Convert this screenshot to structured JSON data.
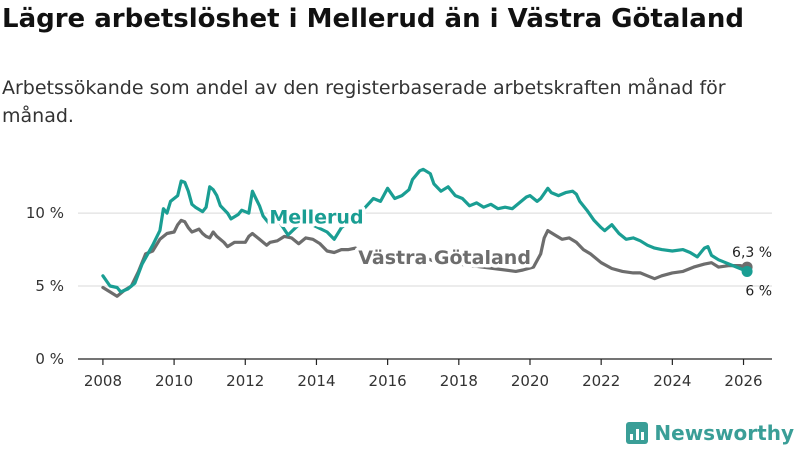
{
  "header": {
    "title": "Lägre arbetslöshet i Mellerud än i Västra Götaland",
    "subtitle": "Arbetssökande som andel av den registerbaserade arbetskraften månad för månad."
  },
  "brand": {
    "name": "Newsworthy",
    "icon": "bar-chart-logo-icon"
  },
  "colors": {
    "mellerud": "#1a9e93",
    "vastra": "#6d6d6d",
    "grid": "#d9d9d9",
    "axis": "#222222"
  },
  "chart_data": {
    "type": "line",
    "title": "Lägre arbetslöshet i Mellerud än i Västra Götaland",
    "xlabel": "",
    "ylabel": "",
    "xlim": [
      2007.3,
      2026.8
    ],
    "ylim": [
      0,
      13.5
    ],
    "x_ticks": [
      {
        "value": 2008,
        "label": "2008"
      },
      {
        "value": 2010,
        "label": "2010"
      },
      {
        "value": 2012,
        "label": "2012"
      },
      {
        "value": 2014,
        "label": "2014"
      },
      {
        "value": 2016,
        "label": "2016"
      },
      {
        "value": 2018,
        "label": "2018"
      },
      {
        "value": 2020,
        "label": "2020"
      },
      {
        "value": 2022,
        "label": "2022"
      },
      {
        "value": 2024,
        "label": "2024"
      },
      {
        "value": 2026,
        "label": "2026"
      }
    ],
    "y_ticks": [
      {
        "value": 0,
        "label": "0 %"
      },
      {
        "value": 5,
        "label": "5 %"
      },
      {
        "value": 10,
        "label": "10 %"
      }
    ],
    "grid": true,
    "series": [
      {
        "name": "Mellerud",
        "label_text": "Mellerud",
        "end_label": "6 %",
        "end_value": 6.0,
        "points": [
          [
            2008.0,
            5.7
          ],
          [
            2008.2,
            5.0
          ],
          [
            2008.4,
            4.9
          ],
          [
            2008.5,
            4.6
          ],
          [
            2008.7,
            4.8
          ],
          [
            2008.9,
            5.2
          ],
          [
            2009.1,
            6.5
          ],
          [
            2009.4,
            7.8
          ],
          [
            2009.6,
            8.8
          ],
          [
            2009.7,
            10.3
          ],
          [
            2009.8,
            10.0
          ],
          [
            2009.9,
            10.8
          ],
          [
            2010.1,
            11.2
          ],
          [
            2010.2,
            12.2
          ],
          [
            2010.3,
            12.1
          ],
          [
            2010.4,
            11.5
          ],
          [
            2010.5,
            10.6
          ],
          [
            2010.6,
            10.4
          ],
          [
            2010.8,
            10.1
          ],
          [
            2010.9,
            10.4
          ],
          [
            2011.0,
            11.8
          ],
          [
            2011.1,
            11.6
          ],
          [
            2011.2,
            11.2
          ],
          [
            2011.3,
            10.5
          ],
          [
            2011.5,
            10.0
          ],
          [
            2011.6,
            9.6
          ],
          [
            2011.8,
            9.9
          ],
          [
            2011.9,
            10.2
          ],
          [
            2012.1,
            10.0
          ],
          [
            2012.2,
            11.5
          ],
          [
            2012.3,
            11.0
          ],
          [
            2012.4,
            10.5
          ],
          [
            2012.5,
            9.8
          ],
          [
            2012.6,
            9.5
          ],
          [
            2012.7,
            9.2
          ],
          [
            2012.8,
            10.0
          ],
          [
            2013.2,
            8.5
          ],
          [
            2013.5,
            9.2
          ],
          [
            2013.8,
            9.3
          ],
          [
            2014.3,
            8.7
          ],
          [
            2014.5,
            8.2
          ],
          [
            2014.7,
            9.0
          ],
          [
            2014.9,
            9.4
          ],
          [
            2015.3,
            10.2
          ],
          [
            2015.6,
            11.0
          ],
          [
            2015.8,
            10.8
          ],
          [
            2016.0,
            11.7
          ],
          [
            2016.2,
            11.0
          ],
          [
            2016.4,
            11.2
          ],
          [
            2016.6,
            11.6
          ],
          [
            2016.7,
            12.3
          ],
          [
            2016.9,
            12.9
          ],
          [
            2017.0,
            13.0
          ],
          [
            2017.2,
            12.7
          ],
          [
            2017.3,
            12.0
          ],
          [
            2017.5,
            11.5
          ],
          [
            2017.7,
            11.8
          ],
          [
            2017.9,
            11.2
          ],
          [
            2018.1,
            11.0
          ],
          [
            2018.3,
            10.5
          ],
          [
            2018.5,
            10.7
          ],
          [
            2018.7,
            10.4
          ],
          [
            2018.9,
            10.6
          ],
          [
            2019.1,
            10.3
          ],
          [
            2019.3,
            10.4
          ],
          [
            2019.5,
            10.3
          ],
          [
            2019.7,
            10.7
          ],
          [
            2019.9,
            11.1
          ],
          [
            2020.0,
            11.2
          ],
          [
            2020.2,
            10.8
          ],
          [
            2020.3,
            11.0
          ],
          [
            2020.5,
            11.7
          ],
          [
            2020.6,
            11.4
          ],
          [
            2020.8,
            11.2
          ],
          [
            2021.0,
            11.4
          ],
          [
            2021.2,
            11.5
          ],
          [
            2021.3,
            11.3
          ],
          [
            2021.4,
            10.8
          ],
          [
            2021.6,
            10.2
          ],
          [
            2021.8,
            9.5
          ],
          [
            2022.0,
            9.0
          ],
          [
            2022.1,
            8.8
          ],
          [
            2022.3,
            9.2
          ],
          [
            2022.5,
            8.6
          ],
          [
            2022.7,
            8.2
          ],
          [
            2022.9,
            8.3
          ],
          [
            2023.1,
            8.1
          ],
          [
            2023.3,
            7.8
          ],
          [
            2023.5,
            7.6
          ],
          [
            2023.7,
            7.5
          ],
          [
            2024.0,
            7.4
          ],
          [
            2024.3,
            7.5
          ],
          [
            2024.5,
            7.3
          ],
          [
            2024.7,
            7.0
          ],
          [
            2024.8,
            7.3
          ],
          [
            2024.9,
            7.6
          ],
          [
            2025.0,
            7.7
          ],
          [
            2025.1,
            7.1
          ],
          [
            2025.3,
            6.8
          ],
          [
            2025.5,
            6.6
          ],
          [
            2025.7,
            6.4
          ],
          [
            2025.9,
            6.2
          ],
          [
            2026.1,
            6.0
          ]
        ]
      },
      {
        "name": "Västra Götaland",
        "label_text": "Västra Götaland",
        "end_label": "6,3 %",
        "end_value": 6.3,
        "points": [
          [
            2008.0,
            4.9
          ],
          [
            2008.2,
            4.6
          ],
          [
            2008.4,
            4.3
          ],
          [
            2008.6,
            4.7
          ],
          [
            2008.8,
            5.0
          ],
          [
            2009.0,
            6.0
          ],
          [
            2009.2,
            7.2
          ],
          [
            2009.4,
            7.4
          ],
          [
            2009.6,
            8.2
          ],
          [
            2009.8,
            8.6
          ],
          [
            2010.0,
            8.7
          ],
          [
            2010.1,
            9.2
          ],
          [
            2010.2,
            9.5
          ],
          [
            2010.3,
            9.4
          ],
          [
            2010.4,
            9.0
          ],
          [
            2010.5,
            8.7
          ],
          [
            2010.6,
            8.8
          ],
          [
            2010.7,
            8.9
          ],
          [
            2010.8,
            8.6
          ],
          [
            2010.9,
            8.4
          ],
          [
            2011.0,
            8.3
          ],
          [
            2011.1,
            8.7
          ],
          [
            2011.2,
            8.4
          ],
          [
            2011.4,
            8.0
          ],
          [
            2011.5,
            7.7
          ],
          [
            2011.7,
            8.0
          ],
          [
            2011.9,
            8.0
          ],
          [
            2012.0,
            8.0
          ],
          [
            2012.1,
            8.4
          ],
          [
            2012.2,
            8.6
          ],
          [
            2012.4,
            8.2
          ],
          [
            2012.6,
            7.8
          ],
          [
            2012.7,
            8.0
          ],
          [
            2012.9,
            8.1
          ],
          [
            2013.1,
            8.4
          ],
          [
            2013.3,
            8.3
          ],
          [
            2013.5,
            7.9
          ],
          [
            2013.7,
            8.3
          ],
          [
            2013.9,
            8.2
          ],
          [
            2014.1,
            7.9
          ],
          [
            2014.3,
            7.4
          ],
          [
            2014.5,
            7.3
          ],
          [
            2014.7,
            7.5
          ],
          [
            2014.9,
            7.5
          ],
          [
            2015.1,
            7.6
          ],
          [
            2015.3,
            7.2
          ],
          [
            2015.5,
            7.0
          ],
          [
            2015.7,
            7.1
          ],
          [
            2015.9,
            7.1
          ],
          [
            2016.1,
            7.2
          ],
          [
            2016.3,
            6.9
          ],
          [
            2016.5,
            6.5
          ],
          [
            2016.7,
            6.7
          ],
          [
            2016.9,
            6.8
          ],
          [
            2017.1,
            6.9
          ],
          [
            2017.3,
            6.7
          ],
          [
            2017.5,
            6.4
          ],
          [
            2017.7,
            6.6
          ],
          [
            2019.6,
            6.0
          ],
          [
            2019.8,
            6.1
          ],
          [
            2020.1,
            6.3
          ],
          [
            2020.3,
            7.2
          ],
          [
            2020.4,
            8.3
          ],
          [
            2020.5,
            8.8
          ],
          [
            2020.7,
            8.5
          ],
          [
            2020.9,
            8.2
          ],
          [
            2021.1,
            8.3
          ],
          [
            2021.3,
            8.0
          ],
          [
            2021.5,
            7.5
          ],
          [
            2021.7,
            7.2
          ],
          [
            2022.0,
            6.6
          ],
          [
            2022.3,
            6.2
          ],
          [
            2022.6,
            6.0
          ],
          [
            2022.9,
            5.9
          ],
          [
            2023.1,
            5.9
          ],
          [
            2023.3,
            5.7
          ],
          [
            2023.5,
            5.5
          ],
          [
            2023.7,
            5.7
          ],
          [
            2024.0,
            5.9
          ],
          [
            2024.3,
            6.0
          ],
          [
            2024.6,
            6.3
          ],
          [
            2024.9,
            6.5
          ],
          [
            2025.1,
            6.6
          ],
          [
            2025.3,
            6.3
          ],
          [
            2025.6,
            6.4
          ],
          [
            2025.9,
            6.4
          ],
          [
            2026.1,
            6.3
          ]
        ]
      }
    ]
  }
}
